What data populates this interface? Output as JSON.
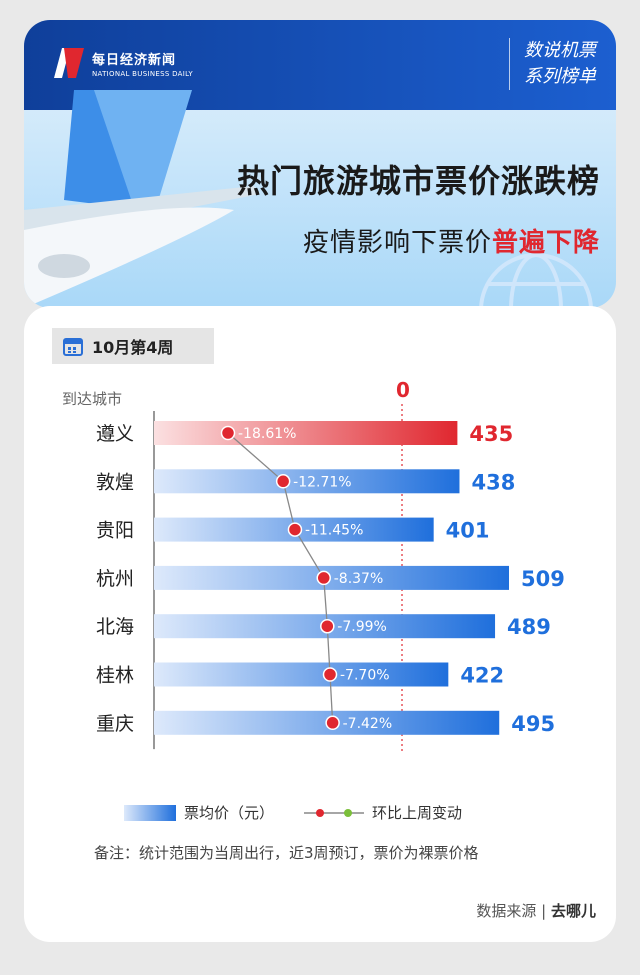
{
  "header": {
    "logo_cn": "每日经济新闻",
    "logo_en": "NATIONAL BUSINESS DAILY",
    "series_line1": "数说机票",
    "series_line2": "系列榜单",
    "title": "热门旅游城市票价涨跌榜",
    "subtitle_pre": "疫情影响下票价",
    "subtitle_highlight": "普遍下降"
  },
  "panel": {
    "week": "10月第4周",
    "city_header": "到达城市",
    "zero_label": "0",
    "legend_bar": "票均价（元）",
    "legend_line": "环比上周变动",
    "note": "备注：统计范围为当周出行，近3周预订，票价为裸票价格",
    "source_label": "数据来源",
    "source_name": "去哪儿"
  },
  "colors": {
    "bar_blue": "#1f6fdc",
    "bar_red": "#e0272f",
    "line_gray": "#888888",
    "dot_red": "#e0272f"
  },
  "chart_data": {
    "type": "bar",
    "categories": [
      "遵义",
      "敦煌",
      "贵阳",
      "杭州",
      "北海",
      "桂林",
      "重庆"
    ],
    "series": [
      {
        "name": "票均价（元）",
        "values": [
          435,
          438,
          401,
          509,
          489,
          422,
          495
        ]
      },
      {
        "name": "环比上周变动",
        "values": [
          -18.61,
          -12.71,
          -11.45,
          -8.37,
          -7.99,
          -7.7,
          -7.42
        ]
      }
    ],
    "change_labels": [
      "-18.61%",
      "-12.71%",
      "-11.45%",
      "-8.37%",
      "-7.99%",
      "-7.70%",
      "-7.42%"
    ],
    "highlight_index": 0
  }
}
